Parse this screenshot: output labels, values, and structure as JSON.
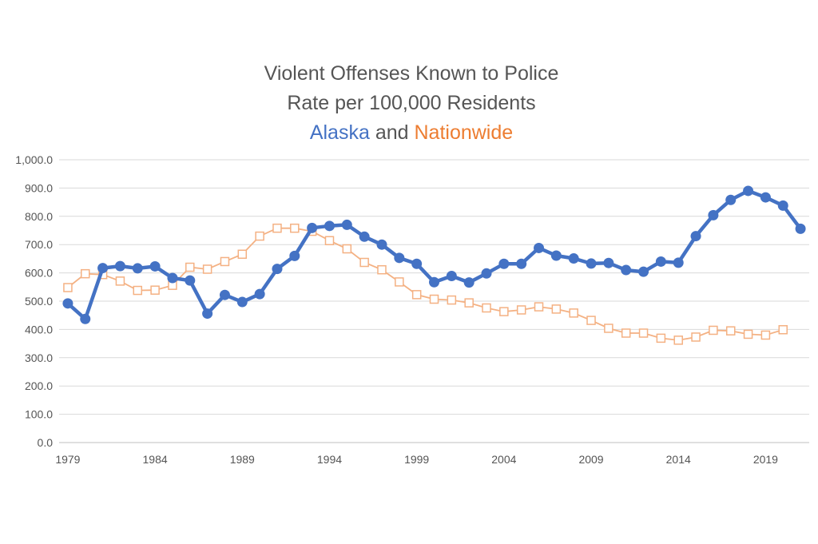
{
  "chart_data": {
    "type": "line",
    "title": "Violent Offenses Known to Police",
    "subtitle": "Rate per 100,000 Residents",
    "legend_line": {
      "series_a": "Alaska",
      "connector": "and",
      "series_b": "Nationwide"
    },
    "xlabel": "",
    "ylabel": "",
    "ylim": [
      0,
      1000
    ],
    "xlim": [
      1979,
      2021
    ],
    "y_ticks": [
      "0.0",
      "100.0",
      "200.0",
      "300.0",
      "400.0",
      "500.0",
      "600.0",
      "700.0",
      "800.0",
      "900.0",
      "1,000.0"
    ],
    "x_ticks": [
      "1979",
      "1984",
      "1989",
      "1994",
      "1999",
      "2004",
      "2009",
      "2014",
      "2019"
    ],
    "grid": "horizontal",
    "colors": {
      "alaska": "#4472C4",
      "nationwide": "#ED7D31",
      "text": "#555555",
      "grid": "#D9D9D9"
    },
    "series": [
      {
        "name": "Alaska",
        "marker": "circle",
        "x": [
          1979,
          1980,
          1981,
          1982,
          1983,
          1984,
          1985,
          1986,
          1987,
          1988,
          1989,
          1990,
          1991,
          1992,
          1993,
          1994,
          1995,
          1996,
          1997,
          1998,
          1999,
          2000,
          2001,
          2002,
          2003,
          2004,
          2005,
          2006,
          2007,
          2008,
          2009,
          2010,
          2011,
          2012,
          2013,
          2014,
          2015,
          2016,
          2017,
          2018,
          2019,
          2020,
          2021
        ],
        "values": [
          492,
          437,
          617,
          624,
          616,
          623,
          582,
          573,
          456,
          522,
          497,
          525,
          614,
          660,
          759,
          766,
          770,
          728,
          700,
          653,
          632,
          567,
          589,
          566,
          598,
          632,
          632,
          688,
          661,
          651,
          633,
          635,
          610,
          604,
          640,
          636,
          730,
          804,
          858,
          890,
          867,
          838,
          756
        ]
      },
      {
        "name": "Nationwide",
        "marker": "open-square",
        "x": [
          1979,
          1980,
          1981,
          1982,
          1983,
          1984,
          1985,
          1986,
          1987,
          1988,
          1989,
          1990,
          1991,
          1992,
          1993,
          1994,
          1995,
          1996,
          1997,
          1998,
          1999,
          2000,
          2001,
          2002,
          2003,
          2004,
          2005,
          2006,
          2007,
          2008,
          2009,
          2010,
          2011,
          2012,
          2013,
          2014,
          2015,
          2016,
          2017,
          2018,
          2019,
          2020
        ],
        "values": [
          548,
          597,
          594,
          571,
          538,
          539,
          556,
          620,
          613,
          640,
          666,
          730,
          758,
          758,
          747,
          714,
          685,
          637,
          611,
          568,
          523,
          507,
          504,
          494,
          476,
          463,
          469,
          480,
          472,
          458,
          432,
          404,
          387,
          387,
          369,
          362,
          373,
          397,
          395,
          383,
          380,
          399
        ]
      }
    ]
  }
}
